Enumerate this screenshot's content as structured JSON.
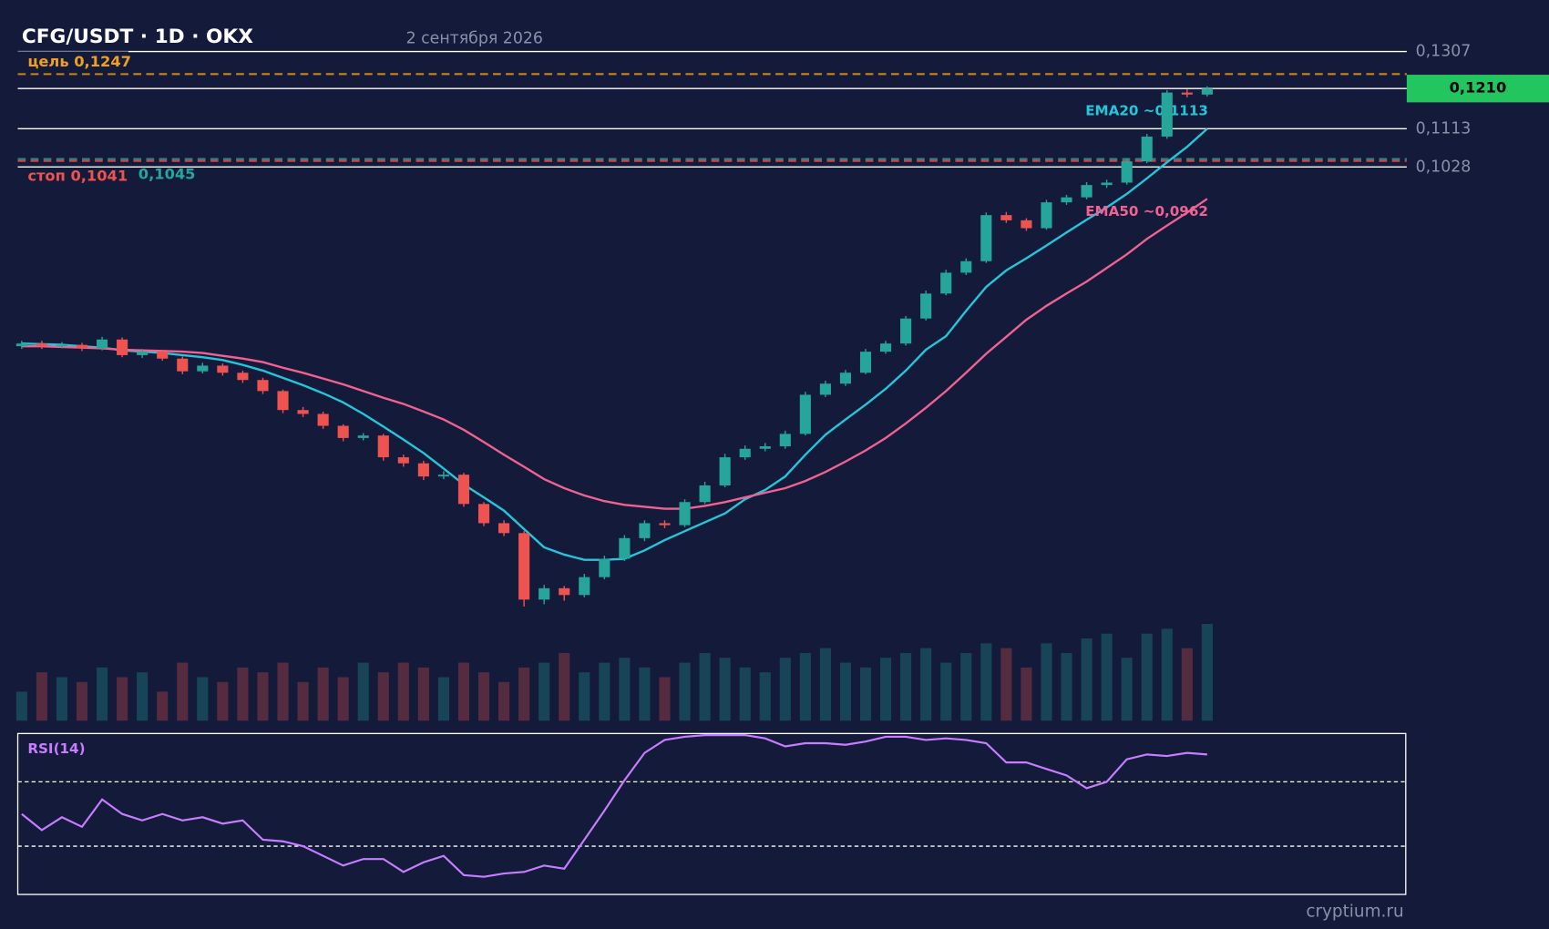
{
  "chart_data": {
    "type": "candlestick",
    "title": "CFG/USDT · 1D · OKX",
    "subtitle": "2 сентября 2026",
    "watermark": "cryptium.ru",
    "log_scale": true,
    "ylim": [
      0.0399,
      0.134
    ],
    "yticks": [
      {
        "value": 0.1307,
        "label": "0,1307"
      },
      {
        "value": 0.1113,
        "label": "0,1113"
      },
      {
        "value": 0.1028,
        "label": "0,1028"
      }
    ],
    "last_price": {
      "value": 0.121,
      "label": "0,1210",
      "color": "#22c55e"
    },
    "levels": [
      {
        "label": "цель 0,1247",
        "value": 0.1247,
        "color": "#f0a020"
      },
      {
        "label": "0,1045",
        "value": 0.1045,
        "color": "#26a69a"
      },
      {
        "label": "стоп 0,1041",
        "value": 0.1041,
        "color": "#ef5350"
      }
    ],
    "up_color": "#26a69a",
    "down_color": "#ef5350",
    "open": [
      0.0708,
      0.0712,
      0.0708,
      0.071,
      0.0705,
      0.0718,
      0.0695,
      0.07,
      0.069,
      0.0672,
      0.068,
      0.067,
      0.066,
      0.0645,
      0.062,
      0.0615,
      0.06,
      0.0585,
      0.0588,
      0.0562,
      0.0555,
      0.054,
      0.0542,
      0.051,
      0.049,
      0.048,
      0.0418,
      0.0428,
      0.0422,
      0.0438,
      0.0455,
      0.0475,
      0.049,
      0.0488,
      0.0512,
      0.053,
      0.0562,
      0.0572,
      0.0575,
      0.059,
      0.064,
      0.0655,
      0.067,
      0.07,
      0.0712,
      0.075,
      0.079,
      0.0825,
      0.0845,
      0.093,
      0.092,
      0.0905,
      0.0955,
      0.0965,
      0.099,
      0.0995,
      0.104,
      0.1095,
      0.12,
      0.1195
    ],
    "high": [
      0.0716,
      0.0716,
      0.0714,
      0.0713,
      0.0722,
      0.0721,
      0.0704,
      0.0703,
      0.0693,
      0.0684,
      0.0683,
      0.0673,
      0.0663,
      0.0647,
      0.0624,
      0.0618,
      0.0602,
      0.0591,
      0.059,
      0.0565,
      0.0558,
      0.0546,
      0.0544,
      0.0512,
      0.0493,
      0.0482,
      0.0431,
      0.043,
      0.0441,
      0.0458,
      0.0478,
      0.0493,
      0.0493,
      0.0515,
      0.0534,
      0.0566,
      0.0576,
      0.0579,
      0.0594,
      0.0644,
      0.0659,
      0.0674,
      0.0704,
      0.0716,
      0.0754,
      0.0795,
      0.083,
      0.085,
      0.0935,
      0.0936,
      0.0924,
      0.096,
      0.097,
      0.0996,
      0.1001,
      0.1046,
      0.1101,
      0.1206,
      0.1208,
      0.1216
    ],
    "low": [
      0.0704,
      0.0704,
      0.0705,
      0.0701,
      0.0702,
      0.0692,
      0.0691,
      0.0687,
      0.0668,
      0.0669,
      0.0666,
      0.0656,
      0.0641,
      0.0616,
      0.0611,
      0.0596,
      0.0581,
      0.0582,
      0.0558,
      0.0551,
      0.0536,
      0.0537,
      0.0507,
      0.0487,
      0.0477,
      0.0412,
      0.0414,
      0.0417,
      0.042,
      0.0436,
      0.0453,
      0.0472,
      0.0485,
      0.0486,
      0.051,
      0.0528,
      0.0559,
      0.0569,
      0.0572,
      0.0588,
      0.0637,
      0.0652,
      0.0668,
      0.0697,
      0.0709,
      0.0747,
      0.0787,
      0.0821,
      0.0842,
      0.0915,
      0.09,
      0.0902,
      0.095,
      0.0961,
      0.0984,
      0.0991,
      0.1036,
      0.109,
      0.1188,
      0.119
    ],
    "close": [
      0.0712,
      0.0708,
      0.071,
      0.0705,
      0.0718,
      0.0695,
      0.07,
      0.069,
      0.0672,
      0.068,
      0.067,
      0.066,
      0.0645,
      0.062,
      0.0615,
      0.06,
      0.0585,
      0.0588,
      0.0562,
      0.0555,
      0.054,
      0.0542,
      0.051,
      0.049,
      0.048,
      0.0418,
      0.0428,
      0.0422,
      0.0438,
      0.0455,
      0.0475,
      0.049,
      0.0488,
      0.0512,
      0.053,
      0.0562,
      0.0572,
      0.0575,
      0.059,
      0.064,
      0.0655,
      0.067,
      0.07,
      0.0712,
      0.075,
      0.079,
      0.0825,
      0.0845,
      0.093,
      0.092,
      0.0905,
      0.0955,
      0.0965,
      0.099,
      0.0995,
      0.104,
      0.1095,
      0.12,
      0.1195,
      0.121
    ],
    "volume_ylim": [
      0,
      100
    ],
    "volume": [
      30,
      50,
      45,
      40,
      55,
      45,
      50,
      30,
      60,
      45,
      40,
      55,
      50,
      60,
      40,
      55,
      45,
      60,
      50,
      60,
      55,
      45,
      60,
      50,
      40,
      55,
      60,
      70,
      50,
      60,
      65,
      55,
      45,
      60,
      70,
      65,
      55,
      50,
      65,
      70,
      75,
      60,
      55,
      65,
      70,
      75,
      60,
      70,
      80,
      75,
      55,
      80,
      70,
      85,
      90,
      65,
      90,
      95,
      75,
      100
    ],
    "ema": [
      {
        "name": "EMA20",
        "label": "EMA20 ~0,1113",
        "color": "#26c6da",
        "values": [
          0.0712,
          0.0711,
          0.071,
          0.0708,
          0.0706,
          0.0702,
          0.07,
          0.0698,
          0.0695,
          0.0692,
          0.0688,
          0.0681,
          0.0673,
          0.0663,
          0.0653,
          0.0642,
          0.063,
          0.0615,
          0.0599,
          0.0583,
          0.0567,
          0.0549,
          0.0531,
          0.0517,
          0.0503,
          0.0484,
          0.0466,
          0.0459,
          0.0454,
          0.0454,
          0.0455,
          0.0463,
          0.0473,
          0.0482,
          0.0491,
          0.05,
          0.0515,
          0.0525,
          0.054,
          0.0565,
          0.0589,
          0.0608,
          0.0627,
          0.0648,
          0.0673,
          0.0703,
          0.0723,
          0.0762,
          0.0801,
          0.0829,
          0.085,
          0.0873,
          0.0897,
          0.0921,
          0.0945,
          0.0972,
          0.1004,
          0.1038,
          0.1072,
          0.1113
        ]
      },
      {
        "name": "EMA50",
        "label": "EMA50 ~0,0962",
        "color": "#f06292",
        "values": [
          0.0708,
          0.0708,
          0.0707,
          0.0706,
          0.0705,
          0.0703,
          0.0702,
          0.0701,
          0.07,
          0.0698,
          0.0694,
          0.069,
          0.0685,
          0.0677,
          0.067,
          0.0662,
          0.0654,
          0.0645,
          0.0636,
          0.0628,
          0.0618,
          0.0608,
          0.0595,
          0.058,
          0.0565,
          0.0551,
          0.0537,
          0.0527,
          0.0519,
          0.0513,
          0.0509,
          0.0507,
          0.0505,
          0.0505,
          0.0508,
          0.0512,
          0.0517,
          0.0522,
          0.0527,
          0.0535,
          0.0545,
          0.0557,
          0.057,
          0.0585,
          0.0603,
          0.0623,
          0.0645,
          0.067,
          0.0697,
          0.0722,
          0.0748,
          0.077,
          0.079,
          0.081,
          0.0833,
          0.0857,
          0.0885,
          0.091,
          0.0935,
          0.0962
        ]
      }
    ],
    "rsi": {
      "label": "RSI(14)",
      "color": "#c77dff",
      "ylim": [
        0,
        100
      ],
      "levels": [
        70,
        30
      ],
      "values": [
        50,
        40,
        48,
        42,
        59,
        50,
        46,
        50,
        46,
        48,
        44,
        46,
        34,
        33,
        30,
        24,
        18,
        22,
        22,
        14,
        20,
        24,
        12,
        11,
        13,
        14,
        18,
        16,
        34,
        52,
        71,
        88,
        96,
        98,
        99,
        99,
        99,
        97,
        92,
        94,
        94,
        93,
        95,
        98,
        98,
        96,
        97,
        96,
        94,
        82,
        82,
        78,
        74,
        66,
        70,
        84,
        87,
        86,
        88,
        87
      ]
    }
  }
}
